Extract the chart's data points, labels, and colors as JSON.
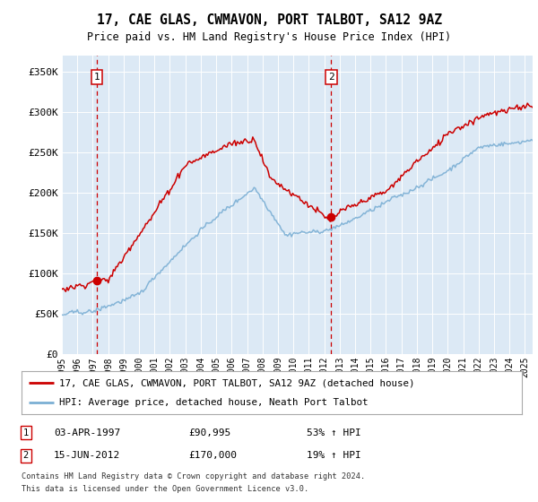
{
  "title": "17, CAE GLAS, CWMAVON, PORT TALBOT, SA12 9AZ",
  "subtitle": "Price paid vs. HM Land Registry's House Price Index (HPI)",
  "xlim_start": 1995.0,
  "xlim_end": 2025.5,
  "ylim": [
    0,
    370000
  ],
  "yticks": [
    0,
    50000,
    100000,
    150000,
    200000,
    250000,
    300000,
    350000
  ],
  "ytick_labels": [
    "£0",
    "£50K",
    "£100K",
    "£150K",
    "£200K",
    "£250K",
    "£300K",
    "£350K"
  ],
  "marker1_x": 1997.25,
  "marker1_y": 90995,
  "marker2_x": 2012.45,
  "marker2_y": 170000,
  "marker1_label": "1",
  "marker2_label": "2",
  "marker1_date": "03-APR-1997",
  "marker1_price": "£90,995",
  "marker1_hpi": "53% ↑ HPI",
  "marker2_date": "15-JUN-2012",
  "marker2_price": "£170,000",
  "marker2_hpi": "19% ↑ HPI",
  "legend_line1": "17, CAE GLAS, CWMAVON, PORT TALBOT, SA12 9AZ (detached house)",
  "legend_line2": "HPI: Average price, detached house, Neath Port Talbot",
  "footnote1": "Contains HM Land Registry data © Crown copyright and database right 2024.",
  "footnote2": "This data is licensed under the Open Government Licence v3.0.",
  "plot_bg": "#dce9f5",
  "line_color_red": "#cc0000",
  "line_color_blue": "#7bafd4",
  "vline_color": "#cc0000",
  "grid_color": "#ffffff"
}
